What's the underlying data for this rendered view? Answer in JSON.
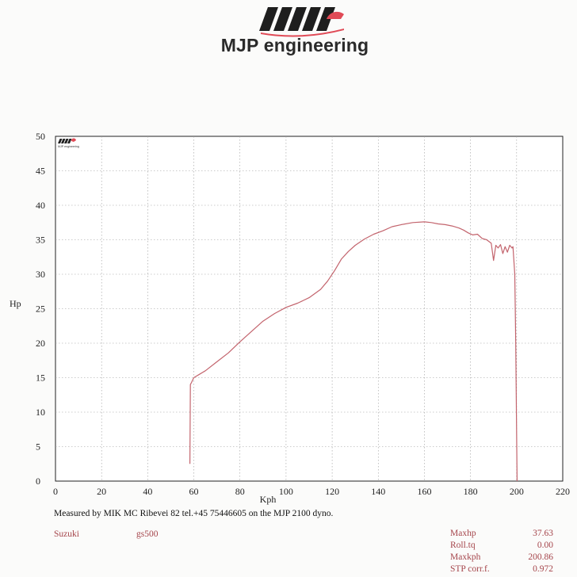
{
  "brand": {
    "name": "MJP engineering",
    "mini_logo_text": "MJP engineering"
  },
  "colors": {
    "curve": "#c3646d",
    "stripes": "#1e1e1e",
    "accent": "#e04a56",
    "footer_text": "#a5454b"
  },
  "chart_data": {
    "type": "line",
    "xlabel": "Kph",
    "ylabel": "Hp",
    "xlim": [
      0,
      220
    ],
    "ylim": [
      0,
      50
    ],
    "x_ticks": [
      0,
      20,
      40,
      60,
      80,
      100,
      120,
      140,
      160,
      180,
      200,
      220
    ],
    "y_ticks": [
      0,
      5,
      10,
      15,
      20,
      25,
      30,
      35,
      40,
      45,
      50
    ],
    "grid": true,
    "series": [
      {
        "name": "Hp",
        "points": [
          [
            58.3,
            2.5
          ],
          [
            58.5,
            14.0
          ],
          [
            59.0,
            14.3
          ],
          [
            60.0,
            15.0
          ],
          [
            65,
            16.0
          ],
          [
            70,
            17.3
          ],
          [
            75,
            18.6
          ],
          [
            80,
            20.2
          ],
          [
            85,
            21.7
          ],
          [
            90,
            23.2
          ],
          [
            95,
            24.3
          ],
          [
            100,
            25.2
          ],
          [
            105,
            25.8
          ],
          [
            110,
            26.6
          ],
          [
            115,
            27.8
          ],
          [
            118,
            29.0
          ],
          [
            121,
            30.5
          ],
          [
            124,
            32.2
          ],
          [
            127,
            33.3
          ],
          [
            130,
            34.2
          ],
          [
            134,
            35.1
          ],
          [
            138,
            35.8
          ],
          [
            142,
            36.3
          ],
          [
            146,
            36.9
          ],
          [
            150,
            37.2
          ],
          [
            155,
            37.5
          ],
          [
            160,
            37.6
          ],
          [
            163,
            37.5
          ],
          [
            166,
            37.3
          ],
          [
            169,
            37.2
          ],
          [
            172,
            37.0
          ],
          [
            175,
            36.7
          ],
          [
            177,
            36.4
          ],
          [
            179,
            36.0
          ],
          [
            181,
            35.7
          ],
          [
            183,
            35.8
          ],
          [
            185,
            35.2
          ],
          [
            187,
            35.0
          ],
          [
            189,
            34.5
          ],
          [
            190,
            32.0
          ],
          [
            191,
            34.2
          ],
          [
            192,
            33.8
          ],
          [
            193,
            34.3
          ],
          [
            194,
            33.0
          ],
          [
            195,
            34.0
          ],
          [
            196,
            33.2
          ],
          [
            197,
            34.2
          ],
          [
            198,
            33.8
          ],
          [
            198.4,
            34.0
          ],
          [
            199.2,
            30.0
          ],
          [
            199.6,
            20.0
          ],
          [
            200.2,
            0.0
          ]
        ]
      }
    ]
  },
  "footer": {
    "measured_text": "Measured by MIK MC  Ribevei 82 tel.+45 75446605 on the MJP 2100 dyno.",
    "make": "Suzuki",
    "model": "gs500",
    "stats": [
      {
        "label": "Maxhp",
        "value": "37.63"
      },
      {
        "label": "Roll.tq",
        "value": "0.00"
      },
      {
        "label": "Maxkph",
        "value": "200.86"
      },
      {
        "label": "STP corr.f.",
        "value": "0.972"
      }
    ]
  }
}
